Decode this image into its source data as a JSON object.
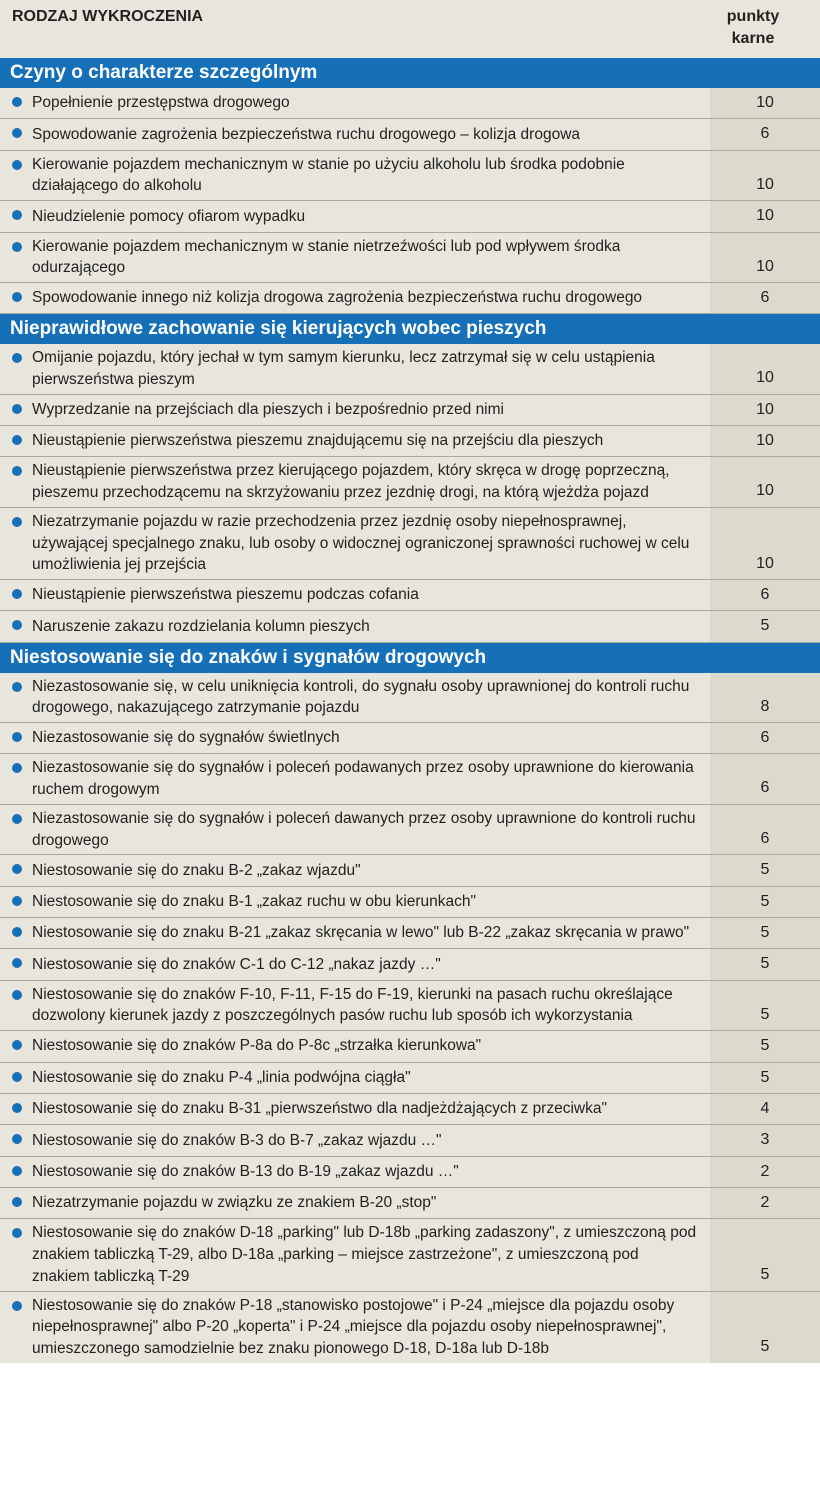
{
  "colors": {
    "background": "#e8e6dc",
    "section_header_bg": "#1670b8",
    "section_header_text": "#ffffff",
    "bullet": "#1670b8",
    "points_cell_bg": "#dcdacd",
    "row_border": "#a8a89c",
    "text": "#222222"
  },
  "typography": {
    "header_fontsize": 16,
    "section_fontsize": 19,
    "row_fontsize": 15.5
  },
  "header": {
    "label": "RODZAJ WYKROCZENIA",
    "points_label1": "punkty",
    "points_label2": "karne"
  },
  "sections": [
    {
      "title": "Czyny o charakterze szczególnym",
      "rows": [
        {
          "desc": "Popełnienie przestępstwa drogowego",
          "points": "10"
        },
        {
          "desc": "Spowodowanie zagrożenia bezpieczeństwa ruchu drogowego – kolizja drogowa",
          "points": "6"
        },
        {
          "desc": "Kierowanie pojazdem mechanicznym w stanie po użyciu alkoholu lub środka podobnie działającego do alkoholu",
          "points": "10"
        },
        {
          "desc": "Nieudzielenie pomocy ofiarom wypadku",
          "points": "10"
        },
        {
          "desc": "Kierowanie pojazdem mechanicznym w stanie nietrzeźwości lub pod wpływem środka odurzającego",
          "points": "10"
        },
        {
          "desc": "Spowodowanie innego niż kolizja drogowa zagrożenia bezpieczeństwa ruchu drogowego",
          "points": "6"
        }
      ]
    },
    {
      "title": "Nieprawidłowe zachowanie się kierujących wobec pieszych",
      "rows": [
        {
          "desc": "Omijanie pojazdu, który jechał w tym samym kierunku, lecz zatrzymał się w celu ustąpienia pierwszeństwa pieszym",
          "points": "10"
        },
        {
          "desc": "Wyprzedzanie na przejściach dla pieszych i bezpośrednio przed nimi",
          "points": "10"
        },
        {
          "desc": "Nieustąpienie pierwszeństwa pieszemu znajdującemu się na przejściu dla pieszych",
          "points": "10"
        },
        {
          "desc": "Nieustąpienie pierwszeństwa przez kierującego pojazdem, który skręca w drogę poprzeczną, pieszemu przechodzącemu na skrzyżowaniu przez jezdnię drogi, na którą wjeżdża pojazd",
          "points": "10"
        },
        {
          "desc": "Niezatrzymanie pojazdu w razie przechodzenia przez jezdnię osoby niepełnosprawnej, używającej specjalnego znaku, lub osoby o widocznej ograniczonej sprawności ruchowej w celu umożliwienia jej przejścia",
          "points": "10"
        },
        {
          "desc": "Nieustąpienie pierwszeństwa pieszemu podczas cofania",
          "points": "6"
        },
        {
          "desc": "Naruszenie zakazu rozdzielania kolumn pieszych",
          "points": "5"
        }
      ]
    },
    {
      "title": "Niestosowanie się do znaków i sygnałów drogowych",
      "rows": [
        {
          "desc": "Niezastosowanie się, w celu uniknięcia kontroli, do sygnału osoby uprawnionej do kontroli ruchu drogowego, nakazującego zatrzymanie pojazdu",
          "points": "8"
        },
        {
          "desc": "Niezastosowanie się do sygnałów świetlnych",
          "points": "6"
        },
        {
          "desc": "Niezastosowanie się do sygnałów i poleceń podawanych przez osoby uprawnione do kierowania ruchem drogowym",
          "points": "6"
        },
        {
          "desc": "Niezastosowanie się do sygnałów i poleceń dawanych przez osoby uprawnione do kontroli ruchu drogowego",
          "points": "6"
        },
        {
          "desc": "Niestosowanie się do znaku B-2 „zakaz wjazdu\"",
          "points": "5"
        },
        {
          "desc": "Niestosowanie się do znaku B-1 „zakaz ruchu w obu kierunkach\"",
          "points": "5"
        },
        {
          "desc": "Niestosowanie się do znaku B-21 „zakaz skręcania w lewo\" lub B-22 „zakaz skręcania w prawo\"",
          "points": "5"
        },
        {
          "desc": "Niestosowanie się do znaków C-1 do C-12 „nakaz jazdy …\"",
          "points": "5"
        },
        {
          "desc": "Niestosowanie się do znaków F-10, F-11, F-15 do F-19, kierunki na pasach ruchu określające dozwolony kierunek jazdy z poszczególnych pasów ruchu lub sposób ich wykorzystania",
          "points": "5"
        },
        {
          "desc": "Niestosowanie się do znaków P-8a do P-8c „strzałka kierunkowa\"",
          "points": "5"
        },
        {
          "desc": "Niestosowanie się do znaku P-4 „linia podwójna ciągła\"",
          "points": "5"
        },
        {
          "desc": "Niestosowanie się do znaku B-31 „pierwszeństwo dla nadjeżdżających z przeciwka\"",
          "points": "4"
        },
        {
          "desc": "Niestosowanie się do znaków B-3 do B-7 „zakaz wjazdu …\"",
          "points": "3"
        },
        {
          "desc": "Niestosowanie się do znaków B-13 do B-19 „zakaz wjazdu …\"",
          "points": "2"
        },
        {
          "desc": "Niezatrzymanie pojazdu w związku ze znakiem B-20 „stop\"",
          "points": "2"
        },
        {
          "desc": "Niestosowanie się do znaków D-18 „parking\" lub D-18b „parking zadaszony\", z umieszczoną pod znakiem tabliczką T-29, albo D-18a „parking – miejsce zastrzeżone\", z umieszczoną pod znakiem tabliczką T-29",
          "points": "5"
        },
        {
          "desc": "Niestosowanie się do znaków P-18 „stanowisko postojowe\" i P-24 „miejsce dla pojazdu osoby niepełnosprawnej\" albo P-20 „koperta\" i P-24 „miejsce dla pojazdu osoby niepełnosprawnej\", umieszczonego samodzielnie bez znaku pionowego D-18, D-18a lub D-18b",
          "points": "5"
        }
      ]
    }
  ]
}
